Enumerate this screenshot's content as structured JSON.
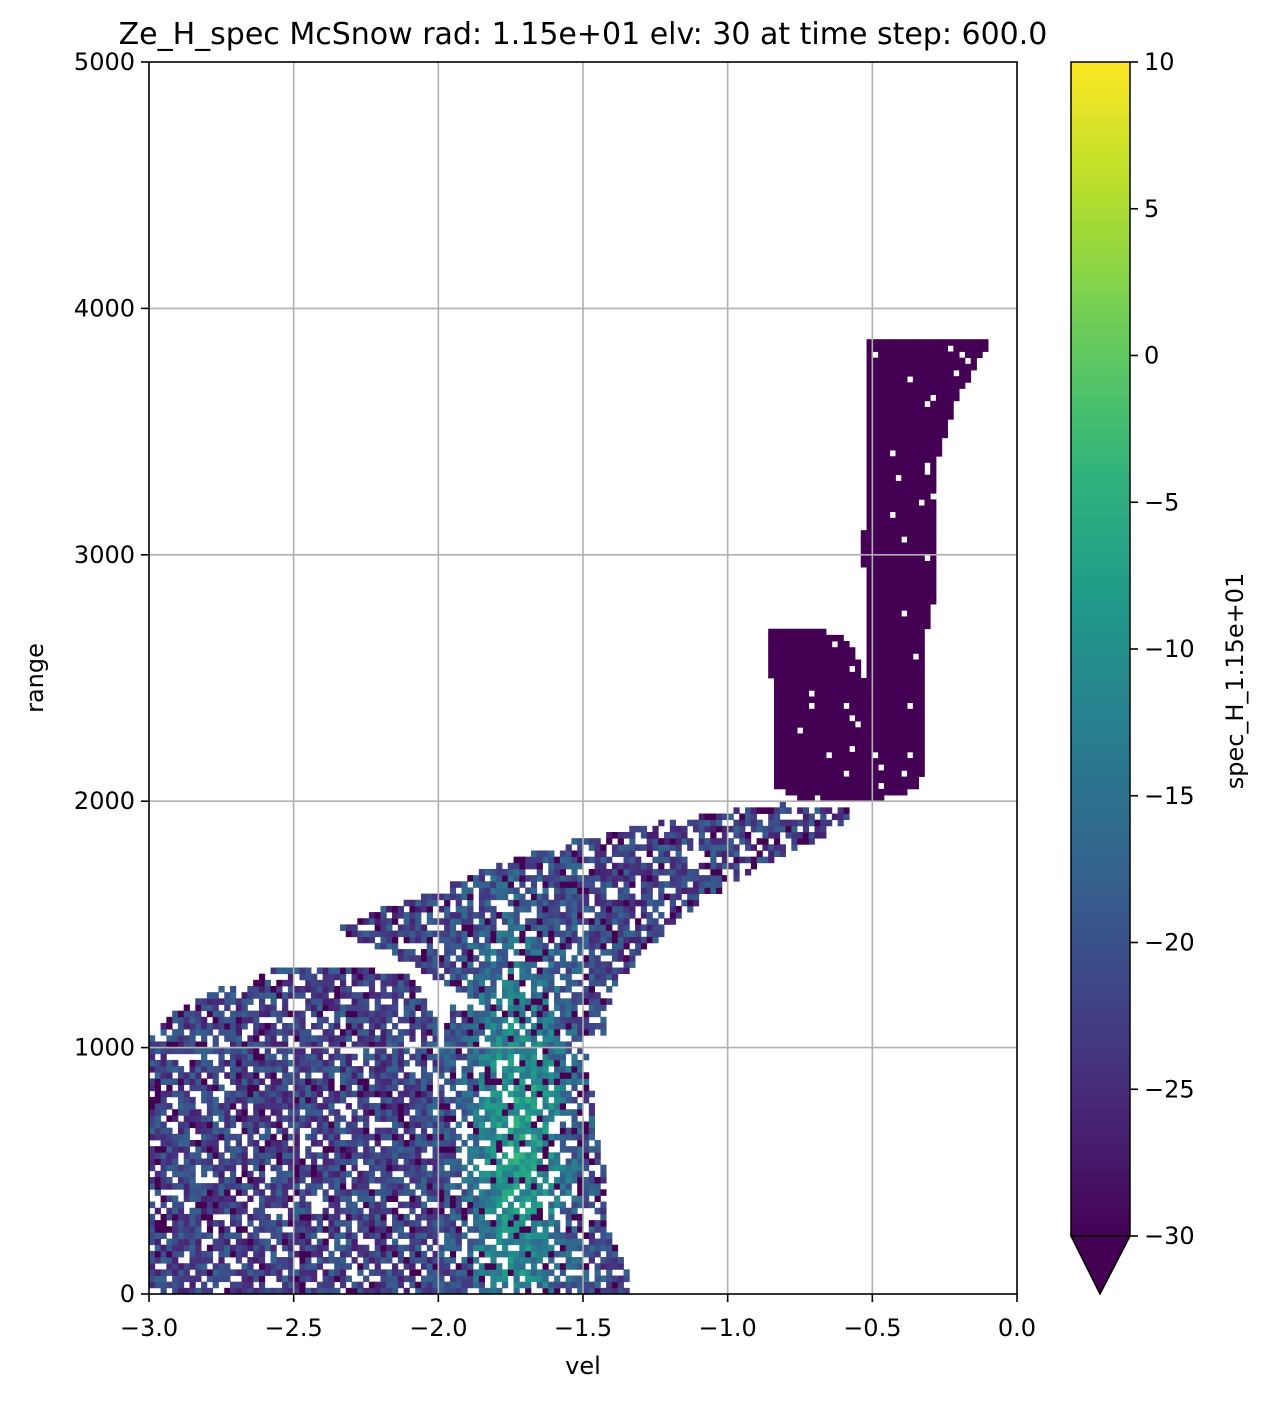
{
  "chart_data": {
    "type": "heatmap",
    "title": "Ze_H_spec McSnow rad: 1.15e+01 elv: 30 at time step: 600.0",
    "xlabel": "vel",
    "ylabel": "range",
    "xlim": [
      -3.0,
      0.0
    ],
    "ylim": [
      0,
      5000
    ],
    "xticks": [
      "−3.0",
      "−2.5",
      "−2.0",
      "−1.5",
      "−1.0",
      "−0.5",
      "0.0"
    ],
    "xtick_values": [
      -3.0,
      -2.5,
      -2.0,
      -1.5,
      -1.0,
      -0.5,
      0.0
    ],
    "yticks": [
      "0",
      "1000",
      "2000",
      "3000",
      "4000",
      "5000"
    ],
    "ytick_values": [
      0,
      1000,
      2000,
      3000,
      4000,
      5000
    ],
    "grid": true,
    "colormap": "viridis",
    "colors": [
      "#440154",
      "#482878",
      "#3e4989",
      "#31688e",
      "#26828e",
      "#1f9e89",
      "#35b779",
      "#6ece58",
      "#b5de2b",
      "#fde725"
    ],
    "colorbar": {
      "label": "spec_H_1.15e+01",
      "vmin": -30,
      "vmax": 10,
      "ticks": [
        "−30",
        "−25",
        "−20",
        "−15",
        "−10",
        "−5",
        "0",
        "5",
        "10"
      ],
      "tick_values": [
        -30,
        -25,
        -20,
        -15,
        -10,
        -5,
        0,
        5,
        10
      ],
      "extend": "min"
    },
    "regions": [
      {
        "description": "upper sheet (<= -30)",
        "value": -30,
        "polygon": [
          [
            -0.83,
            3870
          ],
          [
            -0.09,
            3870
          ],
          [
            -0.15,
            3750
          ],
          [
            -0.22,
            3600
          ],
          [
            -0.27,
            3400
          ],
          [
            -0.28,
            3100
          ],
          [
            -0.29,
            2800
          ],
          [
            -0.31,
            2700
          ],
          [
            -0.31,
            2200
          ],
          [
            -0.34,
            2050
          ],
          [
            -0.5,
            2000
          ],
          [
            -0.52,
            2200
          ],
          [
            -0.52,
            2900
          ],
          [
            -0.54,
            3000
          ],
          [
            -0.52,
            3200
          ],
          [
            -0.53,
            3600
          ],
          [
            -0.52,
            3870
          ]
        ]
      },
      {
        "description": "hook lobe (<= -30)",
        "value": -30,
        "polygon": [
          [
            -0.86,
            2700
          ],
          [
            -0.74,
            2700
          ],
          [
            -0.62,
            2680
          ],
          [
            -0.56,
            2600
          ],
          [
            -0.51,
            2450
          ],
          [
            -0.5,
            2200
          ],
          [
            -0.51,
            2000
          ],
          [
            -0.75,
            2000
          ],
          [
            -0.84,
            2070
          ],
          [
            -0.83,
            2300
          ],
          [
            -0.85,
            2500
          ],
          [
            -0.86,
            2650
          ]
        ]
      },
      {
        "description": "descending band (mixed values)",
        "polygon": [
          [
            -0.8,
            1990
          ],
          [
            -0.55,
            1960
          ],
          [
            -0.68,
            1850
          ],
          [
            -0.85,
            1760
          ],
          [
            -1.0,
            1660
          ],
          [
            -1.1,
            1580
          ],
          [
            -1.2,
            1490
          ],
          [
            -1.3,
            1380
          ],
          [
            -1.38,
            1260
          ],
          [
            -1.42,
            1140
          ],
          [
            -1.43,
            1050
          ],
          [
            -1.6,
            1020
          ],
          [
            -1.8,
            1140
          ],
          [
            -2.0,
            1280
          ],
          [
            -2.2,
            1400
          ],
          [
            -2.35,
            1480
          ],
          [
            -2.2,
            1560
          ],
          [
            -2.0,
            1640
          ],
          [
            -1.8,
            1740
          ],
          [
            -1.5,
            1850
          ],
          [
            -1.2,
            1920
          ],
          [
            -1.0,
            1960
          ]
        ]
      },
      {
        "description": "lower band, left (mixed values)",
        "polygon": [
          [
            -3.0,
            0
          ],
          [
            -1.93,
            0
          ],
          [
            -2.0,
            300
          ],
          [
            -2.02,
            700
          ],
          [
            -2.0,
            1100
          ],
          [
            -2.1,
            1300
          ],
          [
            -2.35,
            1330
          ],
          [
            -2.55,
            1330
          ],
          [
            -2.75,
            1240
          ],
          [
            -2.92,
            1140
          ],
          [
            -3.0,
            1030
          ]
        ]
      },
      {
        "description": "lower band, right core (mixed values)",
        "polygon": [
          [
            -1.93,
            0
          ],
          [
            -1.33,
            0
          ],
          [
            -1.35,
            100
          ],
          [
            -1.4,
            250
          ],
          [
            -1.42,
            450
          ],
          [
            -1.45,
            650
          ],
          [
            -1.47,
            850
          ],
          [
            -1.48,
            1000
          ],
          [
            -1.6,
            1030
          ],
          [
            -1.8,
            1140
          ],
          [
            -1.95,
            1180
          ],
          [
            -2.0,
            1000
          ],
          [
            -2.02,
            600
          ],
          [
            -2.0,
            250
          ]
        ]
      }
    ]
  }
}
